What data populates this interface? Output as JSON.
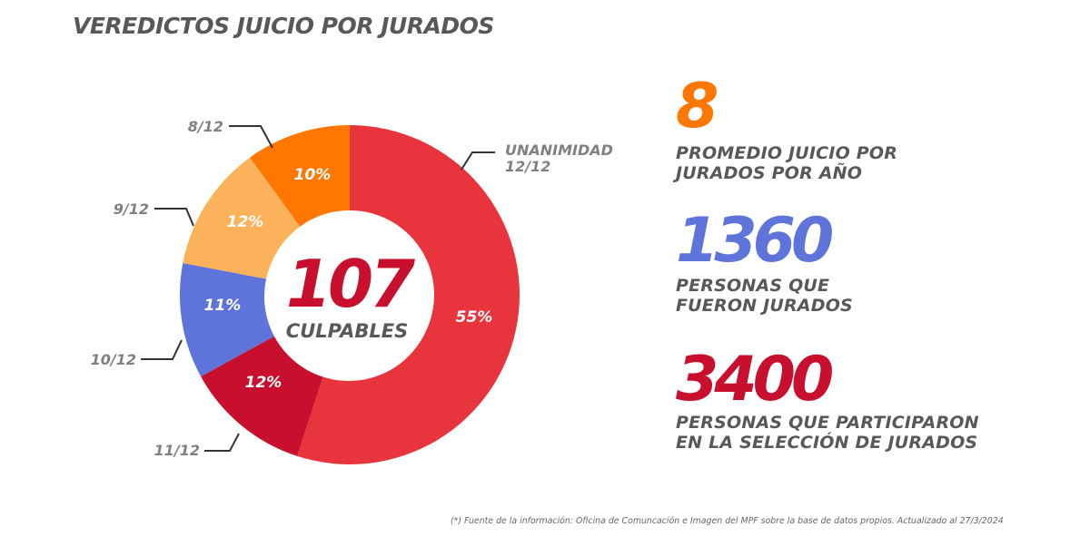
{
  "title": "VEREDICTOS JUICIO POR JURADOS",
  "chart_data": {
    "type": "pie",
    "variant": "donut",
    "title": "VEREDICTOS JUICIO POR JURADOS",
    "center": {
      "value": "107",
      "label": "CULPABLES",
      "value_color": "#C8102E"
    },
    "start": "top",
    "direction": "clockwise",
    "slices": [
      {
        "name": "UNANIMIDAD 12/12",
        "label_lines": [
          "UNANIMIDAD",
          "12/12"
        ],
        "value": 55,
        "display": "55%",
        "color": "#E8343D"
      },
      {
        "name": "11/12",
        "label_lines": [
          "11/12"
        ],
        "value": 12,
        "display": "12%",
        "color": "#C8102E"
      },
      {
        "name": "10/12",
        "label_lines": [
          "10/12"
        ],
        "value": 11,
        "display": "11%",
        "color": "#5E74DA"
      },
      {
        "name": "9/12",
        "label_lines": [
          "9/12"
        ],
        "value": 12,
        "display": "12%",
        "color": "#FCB25A"
      },
      {
        "name": "8/12",
        "label_lines": [
          "8/12"
        ],
        "value": 10,
        "display": "10%",
        "color": "#FF7700"
      }
    ]
  },
  "stats": [
    {
      "value": "8",
      "color": "#FF7700",
      "description": [
        "PROMEDIO JUICIO POR",
        "JURADOS POR AÑO"
      ]
    },
    {
      "value": "1360",
      "color": "#5E74DA",
      "description": [
        "PERSONAS QUE",
        "FUERON JURADOS"
      ]
    },
    {
      "value": "3400",
      "color": "#C8102E",
      "description": [
        "PERSONAS QUE PARTICIPARON",
        "EN LA SELECCIÓN DE JURADOS"
      ]
    }
  ],
  "footnote": "(*) Fuente de la información: Oficina de Comuncación e Imagen del MPF sobre la base de datos propios. Actualizado al 27/3/2024"
}
